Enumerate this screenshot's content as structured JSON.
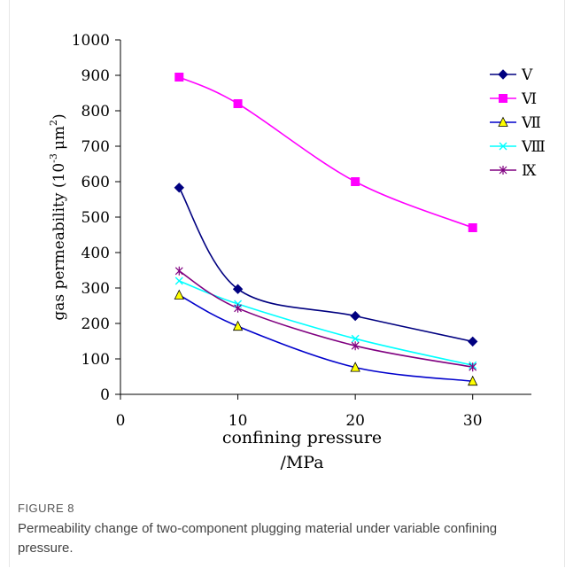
{
  "figure": {
    "label": "FIGURE 8",
    "caption": "Permeability change of two-component plugging material under variable confining pressure."
  },
  "chart_data": {
    "type": "line",
    "xlabel": "confining pressure",
    "xlabel_unit": "/MPa",
    "ylabel": "gas permeability (10",
    "ylabel_exp": "-3",
    "ylabel_unit": "μm",
    "ylabel_unit_exp": "2",
    "ylabel_close": ")",
    "xlim": [
      0,
      35
    ],
    "ylim": [
      0,
      1000
    ],
    "x_ticks": [
      0,
      10,
      20,
      30
    ],
    "x_tick_labels": [
      "0",
      "10",
      "20",
      "30"
    ],
    "y_ticks": [
      0,
      100,
      200,
      300,
      400,
      500,
      600,
      700,
      800,
      900,
      1000
    ],
    "y_tick_labels": [
      "0",
      "100",
      "200",
      "300",
      "400",
      "500",
      "600",
      "700",
      "800",
      "900",
      "1000"
    ],
    "grid": false,
    "legend_position": "right",
    "x": [
      5,
      10,
      20,
      30
    ],
    "series": [
      {
        "name": "Ⅴ",
        "values": [
          583,
          297,
          221,
          149
        ],
        "color": "#000080",
        "marker": "diamond",
        "marker_fill": "#000080"
      },
      {
        "name": "Ⅵ",
        "values": [
          895,
          820,
          600,
          470
        ],
        "color": "#ff00ff",
        "marker": "square",
        "marker_fill": "#ff00ff"
      },
      {
        "name": "Ⅶ",
        "values": [
          280,
          192,
          76,
          37
        ],
        "color": "#0000cc",
        "marker": "triangle",
        "marker_fill": "#ffff00"
      },
      {
        "name": "Ⅷ",
        "values": [
          320,
          255,
          157,
          82
        ],
        "color": "#00ffff",
        "marker": "x",
        "marker_fill": "#00ffff"
      },
      {
        "name": "Ⅸ",
        "values": [
          348,
          243,
          137,
          77
        ],
        "color": "#800080",
        "marker": "star",
        "marker_fill": "#800080"
      }
    ]
  }
}
